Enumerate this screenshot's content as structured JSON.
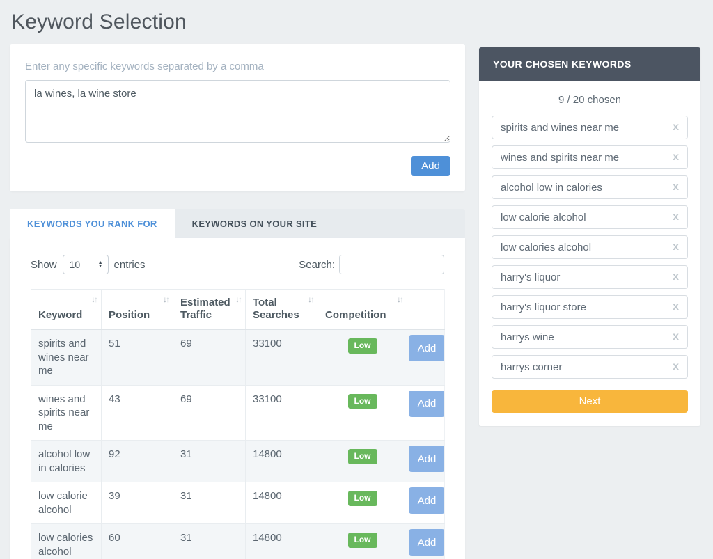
{
  "page_title": "Keyword Selection",
  "keyword_entry": {
    "label": "Enter any specific keywords separated by a comma",
    "value": "la wines, la wine store",
    "add_button": "Add"
  },
  "tabs": [
    {
      "label": "KEYWORDS YOU RANK FOR"
    },
    {
      "label": "KEYWORDS ON YOUR SITE"
    }
  ],
  "table_controls": {
    "show_label": "Show",
    "page_size": "10",
    "entries_label": "entries",
    "search_label": "Search:",
    "search_value": ""
  },
  "table": {
    "headers": {
      "keyword": "Keyword",
      "position": "Position",
      "estimated_traffic": "Estimated Traffic",
      "total_searches": "Total Searches",
      "competition": "Competition",
      "action": ""
    },
    "rows": [
      {
        "keyword": "spirits and wines near me",
        "position": "51",
        "estimated_traffic": "69",
        "total_searches": "33100",
        "competition": "Low",
        "action": "Add"
      },
      {
        "keyword": "wines and spirits near me",
        "position": "43",
        "estimated_traffic": "69",
        "total_searches": "33100",
        "competition": "Low",
        "action": "Add"
      },
      {
        "keyword": "alcohol low in calories",
        "position": "92",
        "estimated_traffic": "31",
        "total_searches": "14800",
        "competition": "Low",
        "action": "Add"
      },
      {
        "keyword": "low calorie alcohol",
        "position": "39",
        "estimated_traffic": "31",
        "total_searches": "14800",
        "competition": "Low",
        "action": "Add"
      },
      {
        "keyword": "low calories alcohol",
        "position": "60",
        "estimated_traffic": "31",
        "total_searches": "14800",
        "competition": "Low",
        "action": "Add"
      }
    ]
  },
  "sidebar": {
    "header": "YOUR CHOSEN KEYWORDS",
    "count_text": "9 / 20 chosen",
    "remove_label": "x",
    "items": [
      "spirits and wines near me",
      "wines and spirits near me",
      "alcohol low in calories",
      "low calorie alcohol",
      "low calories alcohol",
      "harry's liquor",
      "harry's liquor store",
      "harrys wine",
      "harrys corner"
    ],
    "next_button": "Next"
  },
  "colors": {
    "accent_blue": "#4e90d8",
    "row_add_blue": "#89b1e5",
    "badge_green": "#68b85c",
    "sidebar_header": "#4c5562",
    "next_orange": "#f8b63c",
    "page_background": "#eceff1"
  }
}
